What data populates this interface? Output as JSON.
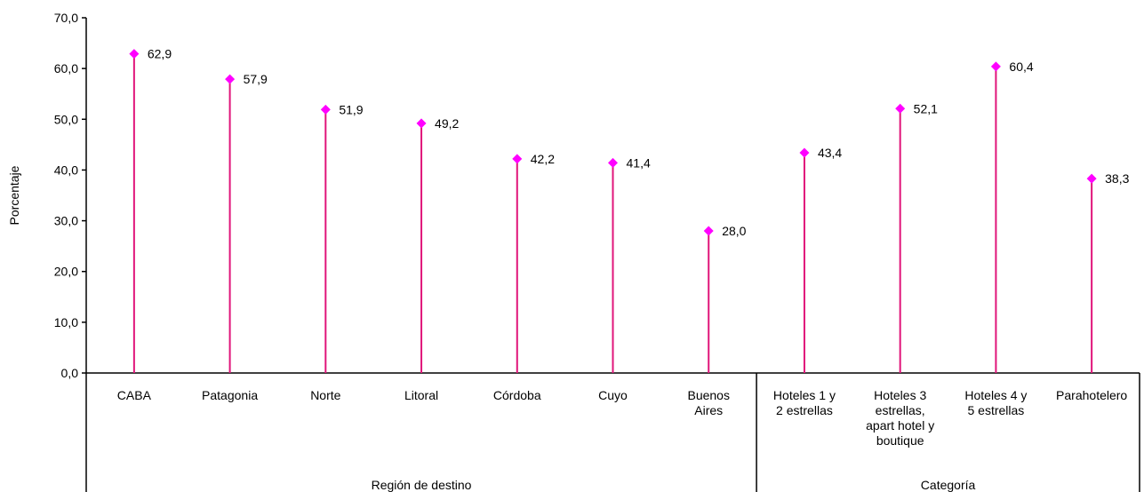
{
  "chart_data": {
    "type": "lollipop",
    "ylabel": "Porcentaje",
    "ylim": [
      0,
      70
    ],
    "y_ticks": [
      "0,0",
      "10,0",
      "20,0",
      "30,0",
      "40,0",
      "50,0",
      "60,0",
      "70,0"
    ],
    "categories": [
      "CABA",
      "Patagonia",
      "Norte",
      "Litoral",
      "Córdoba",
      "Cuyo",
      "Buenos\nAires",
      "Hoteles 1 y\n2 estrellas",
      "Hoteles 3\nestrellas,\napart hotel y\nboutique",
      "Hoteles 4 y\n5 estrellas",
      "Parahotelero"
    ],
    "values": [
      62.9,
      57.9,
      51.9,
      49.2,
      42.2,
      41.4,
      28.0,
      43.4,
      52.1,
      60.4,
      38.3
    ],
    "value_labels": [
      "62,9",
      "57,9",
      "51,9",
      "49,2",
      "42,2",
      "41,4",
      "28,0",
      "43,4",
      "52,1",
      "60,4",
      "38,3"
    ],
    "groups": [
      {
        "label": "Región de destino",
        "count": 7
      },
      {
        "label": "Categoría",
        "count": 4
      }
    ],
    "colors": {
      "stem": "#e0157a",
      "marker": "#ff00ff",
      "axis": "#000000"
    },
    "grid": false
  }
}
